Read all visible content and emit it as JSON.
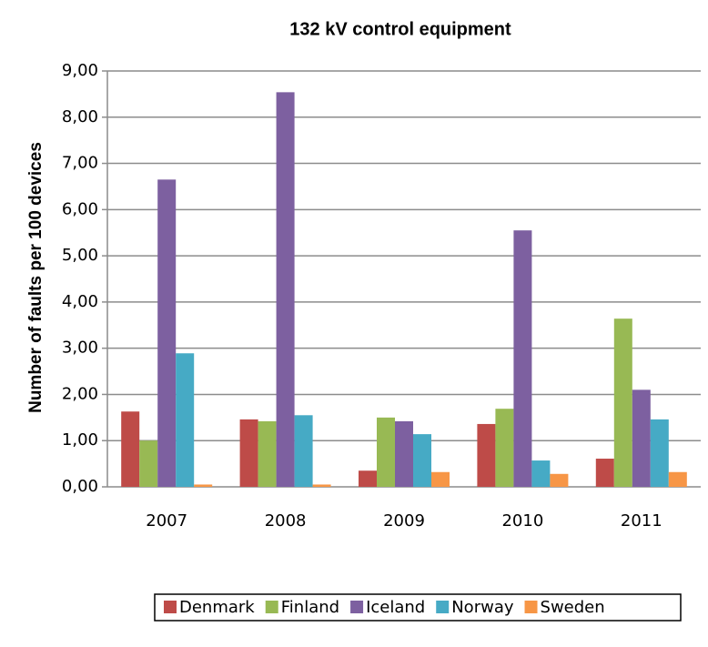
{
  "chart_data": {
    "type": "bar",
    "title": "132 kV control equipment",
    "y_label": "Number of faults per 100 devices",
    "categories": [
      "2007",
      "2008",
      "2009",
      "2010",
      "2011"
    ],
    "series": [
      {
        "name": "Denmark",
        "color": "#be4b48",
        "values": [
          1.63,
          1.46,
          0.35,
          1.36,
          0.61
        ]
      },
      {
        "name": "Finland",
        "color": "#98b954",
        "values": [
          1.0,
          1.42,
          1.5,
          1.69,
          3.64
        ]
      },
      {
        "name": "Iceland",
        "color": "#7d60a0",
        "values": [
          6.65,
          8.54,
          1.42,
          5.55,
          2.1
        ]
      },
      {
        "name": "Norway",
        "color": "#46aac5",
        "values": [
          2.89,
          1.55,
          1.14,
          0.57,
          1.46
        ]
      },
      {
        "name": "Sweden",
        "color": "#f79646",
        "values": [
          0.05,
          0.05,
          0.32,
          0.28,
          0.32
        ]
      }
    ],
    "ylim": [
      0,
      9
    ],
    "yticks": [
      {
        "value": 0,
        "label": "0,00"
      },
      {
        "value": 1,
        "label": "1,00"
      },
      {
        "value": 2,
        "label": "2,00"
      },
      {
        "value": 3,
        "label": "3,00"
      },
      {
        "value": 4,
        "label": "4,00"
      },
      {
        "value": 5,
        "label": "5,00"
      },
      {
        "value": 6,
        "label": "6,00"
      },
      {
        "value": 7,
        "label": "7,00"
      },
      {
        "value": 8,
        "label": "8,00"
      },
      {
        "value": 9,
        "label": "9,00"
      }
    ],
    "grid": true,
    "legend": "bottom"
  }
}
